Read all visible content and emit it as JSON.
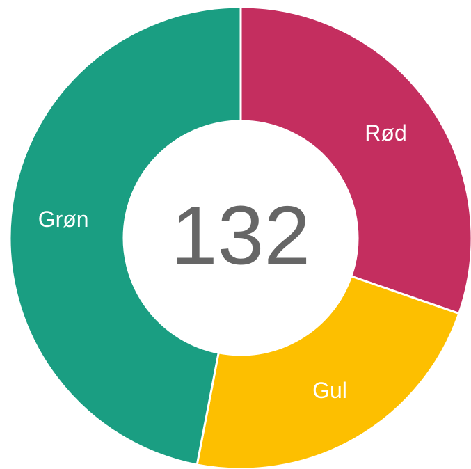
{
  "chart_data": {
    "type": "donut",
    "categories": [
      "Rød",
      "Gul",
      "Grøn"
    ],
    "values": [
      40,
      30,
      62
    ],
    "colors": [
      "#c42e5f",
      "#fdbf00",
      "#1a9e82"
    ],
    "center_label": 132
  }
}
